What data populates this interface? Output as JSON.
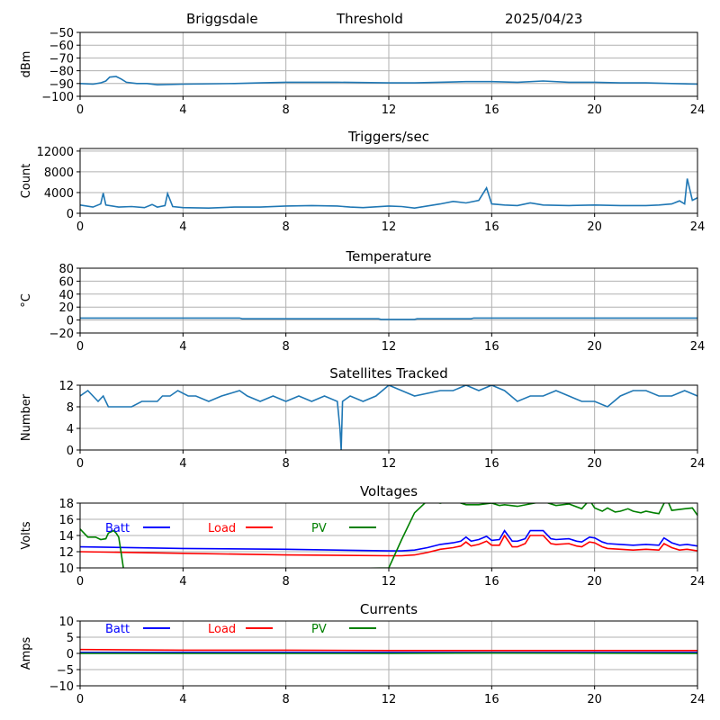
{
  "header": {
    "station": "Briggsdale",
    "mode": "Threshold",
    "date": "2025/04/23"
  },
  "colors": {
    "series": "#1f77b4",
    "batt": "#0000ff",
    "load": "#ff0000",
    "pv": "#008000",
    "grid": "#b0b0b0"
  },
  "chart_data": [
    {
      "type": "line",
      "title": "",
      "ylabel": "dBm",
      "xlim": [
        0,
        24
      ],
      "ylim": [
        -100,
        -50
      ],
      "xticks": [
        0,
        4,
        8,
        12,
        16,
        20,
        24
      ],
      "yticks": [
        -100,
        -90,
        -80,
        -70,
        -60,
        -50
      ],
      "grid": true,
      "series": [
        {
          "color": "#1f77b4",
          "x": [
            0,
            0.5,
            0.8,
            1.0,
            1.15,
            1.4,
            1.6,
            1.8,
            2.2,
            2.6,
            3.0,
            4,
            6,
            7,
            8,
            10,
            12,
            13,
            15,
            16,
            17,
            18,
            19,
            20,
            21,
            22,
            23,
            24
          ],
          "y": [
            -90,
            -90.5,
            -89.5,
            -88,
            -85,
            -84.5,
            -86.5,
            -89,
            -90,
            -90,
            -91,
            -90.5,
            -90,
            -89.5,
            -89,
            -89,
            -89.5,
            -89.5,
            -88.5,
            -88.5,
            -89,
            -88,
            -89,
            -89,
            -89.5,
            -89.5,
            -90,
            -90.5
          ]
        }
      ]
    },
    {
      "type": "line",
      "title": "Triggers/sec",
      "ylabel": "Count",
      "xlim": [
        0,
        24
      ],
      "ylim": [
        0,
        12500
      ],
      "xticks": [
        0,
        4,
        8,
        12,
        16,
        20,
        24
      ],
      "yticks": [
        0,
        4000,
        8000,
        12000
      ],
      "grid": true,
      "series": [
        {
          "color": "#1f77b4",
          "x": [
            0,
            0.5,
            0.8,
            0.9,
            1.0,
            1.5,
            2.0,
            2.5,
            2.8,
            3.0,
            3.3,
            3.4,
            3.6,
            4.0,
            5.0,
            6.0,
            7.0,
            8.0,
            9.0,
            10.0,
            10.5,
            11.0,
            12.0,
            12.5,
            13.0,
            14.0,
            14.5,
            15.0,
            15.5,
            15.8,
            16.0,
            16.5,
            17.0,
            17.5,
            18.0,
            19.0,
            20.0,
            21.0,
            22.0,
            22.5,
            23.0,
            23.3,
            23.5,
            23.6,
            23.8,
            24.0
          ],
          "y": [
            1600,
            1200,
            1800,
            3900,
            1600,
            1200,
            1300,
            1100,
            1700,
            1200,
            1500,
            3800,
            1300,
            1100,
            1000,
            1200,
            1200,
            1400,
            1500,
            1400,
            1200,
            1100,
            1400,
            1300,
            1000,
            1800,
            2300,
            2000,
            2500,
            4900,
            1800,
            1600,
            1500,
            2000,
            1600,
            1500,
            1600,
            1500,
            1500,
            1600,
            1800,
            2400,
            1800,
            6700,
            2500,
            3000
          ]
        }
      ]
    },
    {
      "type": "line",
      "title": "Temperature",
      "ylabel": "°C",
      "xlim": [
        0,
        24
      ],
      "ylim": [
        -20,
        80
      ],
      "xticks": [
        0,
        4,
        8,
        12,
        16,
        20,
        24
      ],
      "yticks": [
        -20,
        0,
        20,
        40,
        60,
        80
      ],
      "grid": true,
      "series": [
        {
          "color": "#1f77b4",
          "x": [
            0,
            6.2,
            6.3,
            11.6,
            11.7,
            13.0,
            13.1,
            15.2,
            15.3,
            24
          ],
          "y": [
            3,
            3,
            2,
            2,
            1,
            1,
            2,
            2,
            3,
            3
          ]
        }
      ]
    },
    {
      "type": "line",
      "title": "Satellites Tracked",
      "ylabel": "Number",
      "xlim": [
        0,
        24
      ],
      "ylim": [
        0,
        12
      ],
      "xticks": [
        0,
        4,
        8,
        12,
        16,
        20,
        24
      ],
      "yticks": [
        0,
        4,
        8,
        12
      ],
      "grid": true,
      "series": [
        {
          "color": "#1f77b4",
          "x": [
            0,
            0.3,
            0.5,
            0.7,
            0.9,
            1.1,
            2.0,
            2.4,
            3.0,
            3.2,
            3.5,
            3.8,
            4.2,
            4.5,
            5.0,
            5.5,
            6.2,
            6.5,
            7.0,
            7.5,
            8.0,
            8.5,
            9.0,
            9.5,
            10.0,
            10.1,
            10.15,
            10.2,
            10.5,
            11.0,
            11.5,
            12.0,
            12.5,
            13.0,
            14.0,
            14.5,
            15.0,
            15.5,
            16.0,
            16.5,
            17.0,
            17.5,
            18.0,
            18.5,
            19.0,
            19.5,
            20.0,
            20.5,
            21.0,
            21.5,
            22.0,
            22.5,
            23.0,
            23.5,
            24.0
          ],
          "y": [
            10,
            11,
            10,
            9,
            10,
            8,
            8,
            9,
            9,
            10,
            10,
            11,
            10,
            10,
            9,
            10,
            11,
            10,
            9,
            10,
            9,
            10,
            9,
            10,
            9,
            4,
            0,
            9,
            10,
            9,
            10,
            12,
            11,
            10,
            11,
            11,
            12,
            11,
            12,
            11,
            9,
            10,
            10,
            11,
            10,
            9,
            9,
            8,
            10,
            11,
            11,
            10,
            10,
            11,
            10
          ]
        }
      ]
    },
    {
      "type": "line",
      "title": "Voltages",
      "ylabel": "Volts",
      "xlim": [
        0,
        24
      ],
      "ylim": [
        10,
        18
      ],
      "xticks": [
        0,
        4,
        8,
        12,
        16,
        20,
        24
      ],
      "yticks": [
        10,
        12,
        14,
        16,
        18
      ],
      "grid": true,
      "legend": "top-left",
      "series": [
        {
          "name": "Batt",
          "color": "#0000ff",
          "x": [
            0,
            4,
            8,
            12,
            12.5,
            13,
            13.5,
            14,
            14.5,
            14.8,
            15.0,
            15.2,
            15.5,
            15.8,
            16.0,
            16.3,
            16.5,
            16.8,
            17.0,
            17.3,
            17.5,
            17.8,
            18.0,
            18.3,
            18.5,
            19.0,
            19.3,
            19.5,
            19.8,
            20.0,
            20.3,
            20.5,
            21.0,
            21.5,
            22.0,
            22.5,
            22.7,
            23.0,
            23.3,
            23.6,
            24.0
          ],
          "y": [
            12.6,
            12.4,
            12.3,
            12.1,
            12.1,
            12.2,
            12.5,
            12.9,
            13.1,
            13.3,
            13.8,
            13.3,
            13.5,
            13.9,
            13.4,
            13.5,
            14.6,
            13.3,
            13.3,
            13.6,
            14.6,
            14.6,
            14.6,
            13.6,
            13.5,
            13.6,
            13.3,
            13.2,
            13.8,
            13.7,
            13.2,
            13.0,
            12.9,
            12.8,
            12.9,
            12.8,
            13.7,
            13.1,
            12.8,
            12.9,
            12.7
          ]
        },
        {
          "name": "Load",
          "color": "#ff0000",
          "x": [
            0,
            4,
            8,
            12,
            12.5,
            13,
            13.5,
            14,
            14.5,
            14.8,
            15.0,
            15.2,
            15.5,
            15.8,
            16.0,
            16.3,
            16.5,
            16.8,
            17.0,
            17.3,
            17.5,
            17.8,
            18.0,
            18.3,
            18.5,
            19.0,
            19.3,
            19.5,
            19.8,
            20.0,
            20.3,
            20.5,
            21.0,
            21.5,
            22.0,
            22.5,
            22.7,
            23.0,
            23.3,
            23.6,
            24.0
          ],
          "y": [
            12.0,
            11.8,
            11.6,
            11.5,
            11.5,
            11.6,
            11.9,
            12.3,
            12.5,
            12.7,
            13.2,
            12.7,
            12.9,
            13.3,
            12.8,
            12.8,
            14.0,
            12.6,
            12.6,
            13.0,
            14.0,
            14.0,
            14.0,
            13.0,
            12.9,
            13.0,
            12.7,
            12.6,
            13.2,
            13.1,
            12.6,
            12.4,
            12.3,
            12.2,
            12.3,
            12.2,
            13.0,
            12.5,
            12.2,
            12.3,
            12.1
          ]
        },
        {
          "name": "PV",
          "color": "#008000",
          "x": [
            0,
            0.3,
            0.6,
            0.8,
            1.0,
            1.1,
            1.3,
            1.4,
            1.5,
            1.6,
            1.7,
            12.0,
            12.5,
            13.0,
            13.5,
            14.0,
            14.5,
            15.0,
            15.5,
            16.0,
            16.3,
            16.5,
            17.0,
            17.5,
            18.0,
            18.5,
            19.0,
            19.5,
            19.8,
            20.0,
            20.3,
            20.5,
            20.8,
            21.0,
            21.3,
            21.5,
            21.8,
            22.0,
            22.3,
            22.5,
            22.8,
            23.0,
            23.5,
            23.8,
            24.0
          ],
          "y": [
            14.8,
            13.8,
            13.8,
            13.5,
            13.6,
            14.3,
            14.6,
            14.3,
            13.8,
            11.8,
            9.6,
            10.0,
            13.5,
            16.8,
            18.3,
            18.0,
            18.3,
            17.8,
            17.8,
            18.0,
            17.7,
            17.8,
            17.6,
            17.9,
            18.2,
            17.7,
            17.9,
            17.3,
            18.4,
            17.4,
            17.0,
            17.4,
            16.9,
            17.0,
            17.3,
            17.0,
            16.8,
            17.0,
            16.8,
            16.7,
            18.6,
            17.1,
            17.3,
            17.4,
            16.5
          ]
        }
      ]
    },
    {
      "type": "line",
      "title": "Currents",
      "ylabel": "Amps",
      "xlim": [
        0,
        24
      ],
      "ylim": [
        -10,
        10
      ],
      "xticks": [
        0,
        4,
        8,
        12,
        16,
        20,
        24
      ],
      "yticks": [
        -10,
        -5,
        0,
        5,
        10
      ],
      "grid": true,
      "legend": "top-left",
      "series": [
        {
          "name": "Batt",
          "color": "#0000ff",
          "x": [
            0,
            24
          ],
          "y": [
            0.3,
            0.3
          ]
        },
        {
          "name": "Load",
          "color": "#ff0000",
          "x": [
            0,
            4,
            8,
            12,
            16,
            20,
            24
          ],
          "y": [
            1.2,
            1.0,
            1.0,
            0.9,
            0.9,
            0.9,
            0.9
          ]
        },
        {
          "name": "PV",
          "color": "#008000",
          "x": [
            0,
            12,
            16,
            24
          ],
          "y": [
            0.0,
            0.0,
            0.1,
            0.0
          ]
        }
      ]
    }
  ]
}
